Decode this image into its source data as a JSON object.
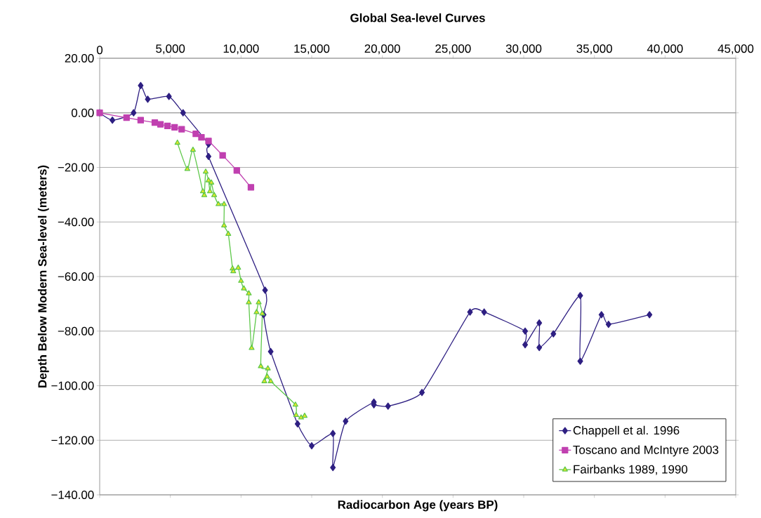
{
  "chart_data": {
    "type": "line",
    "title": "Global Sea-level Curves",
    "xlabel": "Radiocarbon Age (years BP)",
    "ylabel": "Depth Below Modern Sea-level (meters)",
    "xlim": [
      0,
      45000
    ],
    "xticks": [
      {
        "value": 0,
        "label": "0"
      },
      {
        "value": 5000,
        "label": "5,000"
      },
      {
        "value": 10000,
        "label": "10,000"
      },
      {
        "value": 15000,
        "label": "15,000"
      },
      {
        "value": 20000,
        "label": "20,000"
      },
      {
        "value": 25000,
        "label": "25,000"
      },
      {
        "value": 30000,
        "label": "30,000"
      },
      {
        "value": 35000,
        "label": "35,000"
      },
      {
        "value": 40000,
        "label": "40,000"
      },
      {
        "value": 45000,
        "label": "45,000"
      }
    ],
    "ylim": [
      -140,
      20
    ],
    "yticks": [
      {
        "value": 20,
        "label": "20.00"
      },
      {
        "value": 0,
        "label": "0.00"
      },
      {
        "value": -20,
        "label": "−20.00"
      },
      {
        "value": -40,
        "label": "−40.00"
      },
      {
        "value": -60,
        "label": "−60.00"
      },
      {
        "value": -80,
        "label": "−80.00"
      },
      {
        "value": -100,
        "label": "−100.00"
      },
      {
        "value": -120,
        "label": "−120.00"
      },
      {
        "value": -140,
        "label": "−140.00"
      }
    ],
    "grid": "y",
    "legend": "bottom right",
    "series": [
      {
        "name": "Chappell et al. 1996",
        "color": "#2e1f82",
        "marker": "diamond",
        "x": [
          0,
          900,
          2400,
          2900,
          3400,
          4900,
          5900,
          7700,
          7700,
          11700,
          11600,
          12100,
          14000,
          15000,
          16500,
          16500,
          17400,
          19400,
          19400,
          20400,
          22800,
          26200,
          27200,
          30100,
          30100,
          31100,
          31100,
          32100,
          34000,
          34000,
          35500,
          36000,
          38900
        ],
        "values": [
          0,
          -2.7,
          0,
          10,
          5,
          6,
          0,
          -11.5,
          -16,
          -65,
          -74,
          -87.5,
          -114,
          -122,
          -117.5,
          -130,
          -113,
          -106,
          -107,
          -107.5,
          -102.5,
          -73,
          -73,
          -80,
          -85,
          -77,
          -86,
          -81,
          -67,
          -91,
          -74,
          -77.5,
          -74
        ]
      },
      {
        "name": "Toscano and McIntyre 2003",
        "color": "#c040b0",
        "marker": "square",
        "x": [
          0,
          1900,
          2900,
          3900,
          4300,
          4800,
          5300,
          5800,
          6800,
          7200,
          7700,
          8700,
          9700,
          10700
        ],
        "values": [
          0,
          -1.8,
          -2.7,
          -3.6,
          -4.2,
          -4.8,
          -5.3,
          -6,
          -7.7,
          -9,
          -10.3,
          -15.6,
          -21.1,
          -27.3
        ]
      },
      {
        "name": "Fairbanks 1989, 1990",
        "color": "#5ec84a",
        "marker": "triangle",
        "x": [
          5500,
          6200,
          6600,
          7300,
          7400,
          7500,
          7700,
          7800,
          7900,
          8100,
          8400,
          8800,
          8800,
          9100,
          9400,
          9450,
          9800,
          10000,
          10200,
          10550,
          10550,
          10750,
          11100,
          11250,
          11500,
          11400,
          11900,
          11650,
          11850,
          12100,
          13850,
          13900,
          14250,
          14500
        ],
        "values": [
          -11,
          -20.6,
          -13.6,
          -28.8,
          -30.2,
          -21.6,
          -24.8,
          -28.8,
          -25.6,
          -30.2,
          -33.5,
          -33.5,
          -41.3,
          -44.4,
          -57.1,
          -58.1,
          -56.8,
          -61.6,
          -64.4,
          -66.2,
          -69.5,
          -86.2,
          -73.1,
          -69.5,
          -73.6,
          -92.9,
          -93.7,
          -98.4,
          -96.7,
          -98.4,
          -107,
          -110.8,
          -111.7,
          -111.1
        ]
      }
    ]
  }
}
